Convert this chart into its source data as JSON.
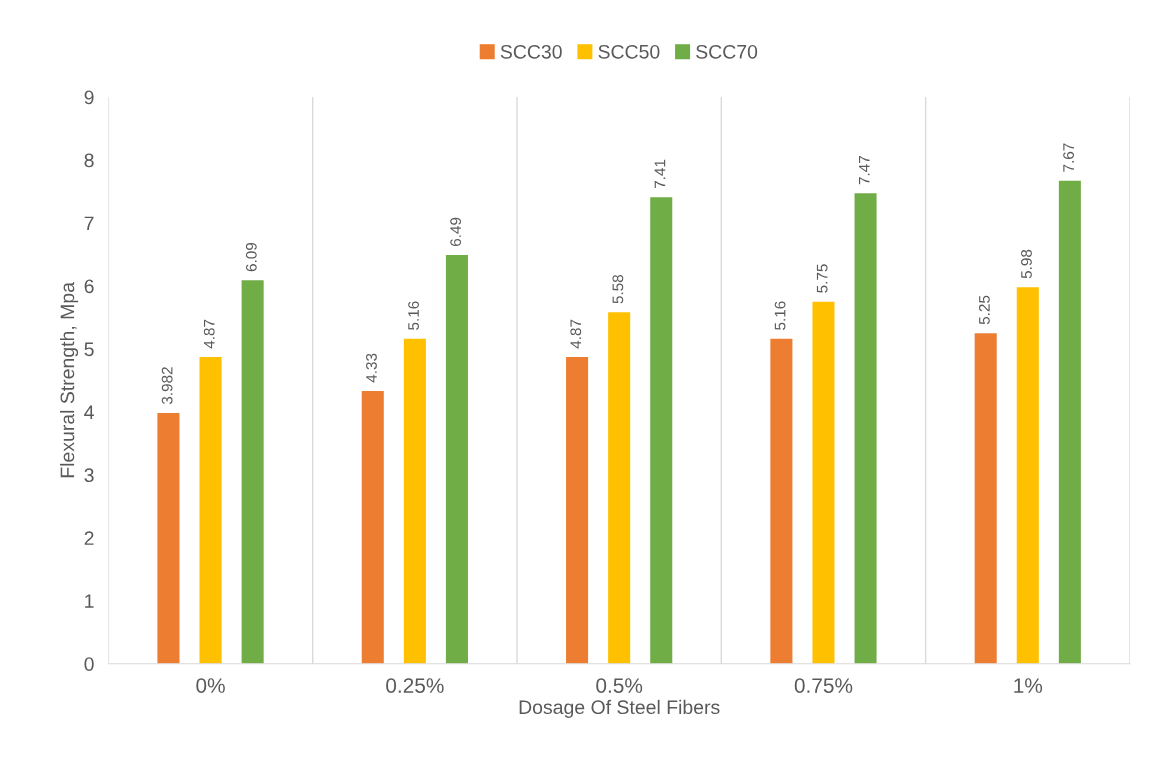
{
  "chart_data": {
    "type": "bar",
    "xlabel": "Dosage Of Steel Fibers",
    "ylabel": "Flexural Strength, Mpa",
    "categories": [
      "0%",
      "0.25%",
      "0.5%",
      "0.75%",
      "1%"
    ],
    "series": [
      {
        "name": "SCC30",
        "color": "#ed7d31",
        "values": [
          3.982,
          4.33,
          4.87,
          5.16,
          5.25
        ]
      },
      {
        "name": "SCC50",
        "color": "#ffc000",
        "values": [
          4.87,
          5.16,
          5.58,
          5.75,
          5.98
        ]
      },
      {
        "name": "SCC70",
        "color": "#70ad47",
        "values": [
          6.09,
          6.49,
          7.41,
          7.47,
          7.67
        ]
      }
    ],
    "ylim": [
      0,
      9
    ],
    "yticks": [
      0,
      1,
      2,
      3,
      4,
      5,
      6,
      7,
      8,
      9
    ],
    "grid": "x",
    "legend": "top",
    "data_labels": true
  }
}
